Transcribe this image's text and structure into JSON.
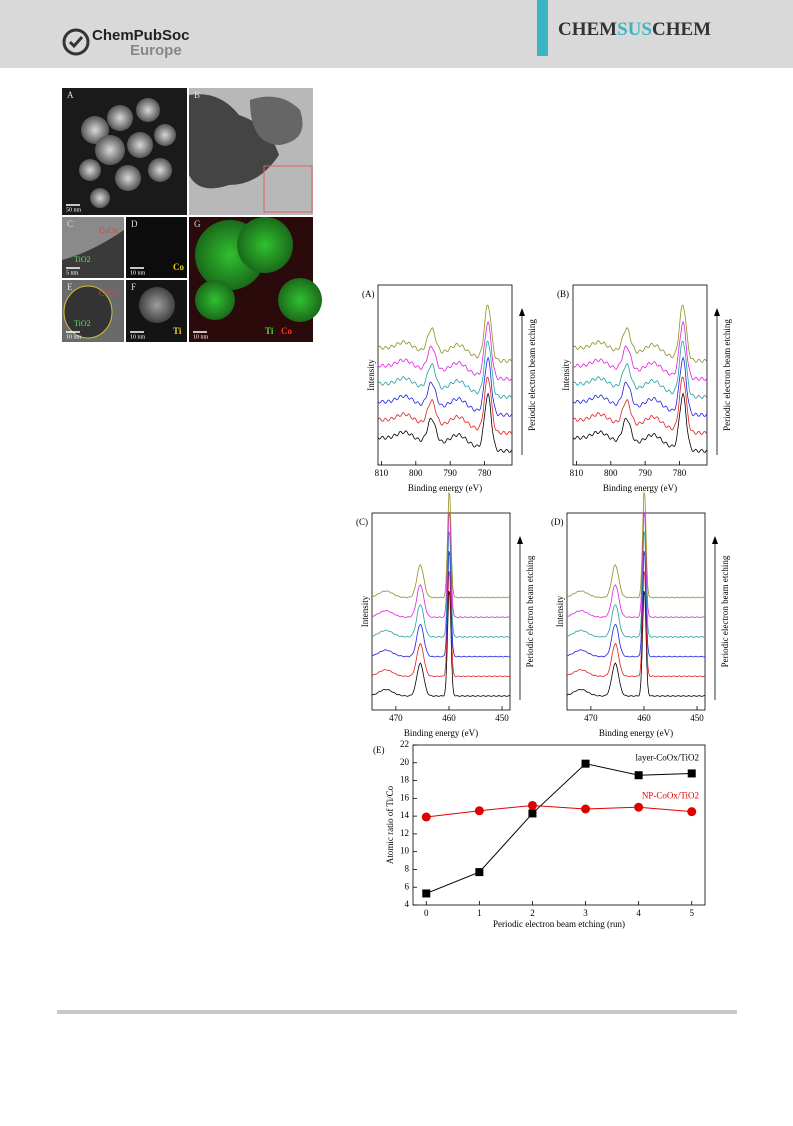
{
  "header": {
    "publisher": "ChemPubSoc",
    "publisher_sub": "Europe",
    "journal_a": "CHEM",
    "journal_b": "SUS",
    "journal_c": "CHEM"
  },
  "micrographs": [
    {
      "label": "A",
      "scale": "50 nm"
    },
    {
      "label": "B"
    },
    {
      "label": "C",
      "scale": "5 nm",
      "mark_a": "CoOx",
      "mark_b": "TiO2"
    },
    {
      "label": "D",
      "scale": "10 nm",
      "element": "Co"
    },
    {
      "label": "E",
      "scale": "10 nm",
      "mark_a": "CoOx",
      "mark_b": "TiO2"
    },
    {
      "label": "F",
      "scale": "10 nm",
      "element": "Ti"
    },
    {
      "label": "G",
      "scale": "10 nm",
      "element": "Ti",
      "element_b": "Co"
    }
  ],
  "spectra": [
    {
      "label": "(A)",
      "xlabel": "Binding energy (eV)",
      "ylabel": "Intensity",
      "side_label": "Periodic electron beam etching",
      "xlim": [
        811,
        772
      ],
      "xticks": [
        810,
        800,
        790,
        780
      ]
    },
    {
      "label": "(B)",
      "xlabel": "Binding energy (eV)",
      "ylabel": "Intensity",
      "side_label": "Periodic electron beam etching",
      "xlim": [
        811,
        772
      ],
      "xticks": [
        810,
        800,
        790,
        780
      ]
    },
    {
      "label": "(C)",
      "xlabel": "Binding energy (eV)",
      "ylabel": "Intensity",
      "side_label": "Periodic electron beam etching",
      "xlim": [
        474.5,
        448.5
      ],
      "xticks": [
        470,
        460,
        450
      ]
    },
    {
      "label": "(D)",
      "xlabel": "Binding energy (eV)",
      "ylabel": "Intensity",
      "side_label": "Periodic electron beam etching",
      "xlim": [
        474.5,
        448.5
      ],
      "xticks": [
        470,
        460,
        450
      ]
    }
  ],
  "trace_colors": [
    "#000000",
    "#e02020",
    "#2020e0",
    "#20a0a0",
    "#e020e0",
    "#909020"
  ],
  "ratio_chart": {
    "type": "line",
    "label": "(E)",
    "xlabel": "Periodic electron beam etching (run)",
    "ylabel": "Atomic ratio of Ti/Co",
    "x": [
      0,
      1,
      2,
      3,
      4,
      5
    ],
    "xlim": [
      -0.25,
      5.25
    ],
    "ylim": [
      4,
      22
    ],
    "xticks": [
      0,
      1,
      2,
      3,
      4,
      5
    ],
    "yticks": [
      4,
      6,
      8,
      10,
      12,
      14,
      16,
      18,
      20,
      22
    ],
    "series": [
      {
        "name": "layer-CoOx/TiO2",
        "color": "#000000",
        "marker": "square",
        "values": [
          5.3,
          7.7,
          14.3,
          19.9,
          18.6,
          18.8
        ]
      },
      {
        "name": "NP-CoOx/TiO2",
        "color": "#e00000",
        "marker": "circle",
        "values": [
          13.9,
          14.6,
          15.2,
          14.8,
          15.0,
          14.5
        ]
      }
    ]
  }
}
